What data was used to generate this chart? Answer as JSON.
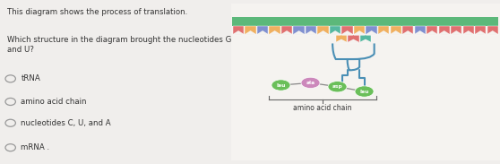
{
  "question_title": "This diagram shows the process of translation.",
  "question_body": "Which structure in the diagram brought the nucleotides G, A,\nand U?",
  "options": [
    "tRNA",
    "amino acid chain",
    "nucleotides C, U, and A",
    "mRNA ."
  ],
  "bg_left": "#f0eeec",
  "bg_right": "#e0ddd8",
  "panel_outline": "#bbbbbb",
  "green_bar_color": "#5cb87a",
  "flag_colors": [
    "#e07070",
    "#f0b060",
    "#8090d0",
    "#f0b060",
    "#e07070",
    "#8090d0",
    "#8090d0",
    "#f0b060",
    "#55b8a0",
    "#e07070",
    "#f0b060",
    "#8090d0",
    "#f0b060",
    "#f0b060",
    "#e07070",
    "#8090d0",
    "#e07070",
    "#e07070",
    "#e07070",
    "#e07070",
    "#e07070",
    "#e07070"
  ],
  "flag_colors_row2": [
    "#f0b060",
    "#e07070",
    "#55b8a0"
  ],
  "trna_color": "#4a8fb5",
  "amino_green": "#6abf5a",
  "amino_pink": "#cc88bb",
  "text_color": "#333333",
  "label_amino": "amino acid chain",
  "white_bg": "#f5f3f0"
}
